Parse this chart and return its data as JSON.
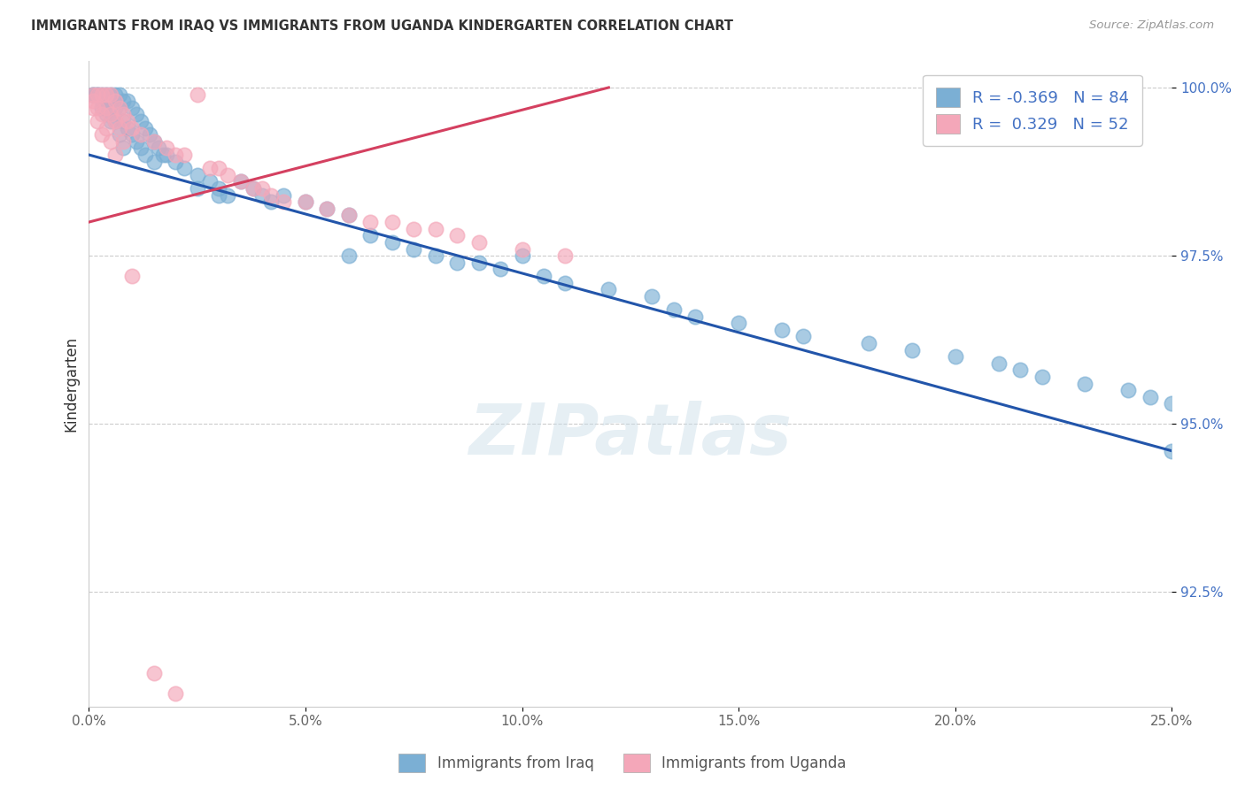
{
  "title": "IMMIGRANTS FROM IRAQ VS IMMIGRANTS FROM UGANDA KINDERGARTEN CORRELATION CHART",
  "source": "Source: ZipAtlas.com",
  "ylabel": "Kindergarten",
  "blue_R": -0.369,
  "blue_N": 84,
  "pink_R": 0.329,
  "pink_N": 52,
  "blue_color": "#7bafd4",
  "pink_color": "#f4a7b9",
  "blue_line_color": "#2255aa",
  "pink_line_color": "#d44060",
  "legend_label_blue": "Immigrants from Iraq",
  "legend_label_pink": "Immigrants from Uganda",
  "watermark": "ZIPatlas",
  "xlim": [
    0.0,
    0.25
  ],
  "ylim": [
    0.908,
    1.004
  ],
  "ytick_vals": [
    1.0,
    0.975,
    0.95,
    0.925
  ],
  "ytick_labels": [
    "100.0%",
    "97.5%",
    "95.0%",
    "92.5%"
  ],
  "xtick_vals": [
    0.0,
    0.05,
    0.1,
    0.15,
    0.2,
    0.25
  ],
  "xtick_labels": [
    "0.0%",
    "5.0%",
    "10.0%",
    "15.0%",
    "20.0%",
    "25.0%"
  ],
  "blue_trend_x": [
    0.0,
    0.25
  ],
  "blue_trend_y": [
    0.99,
    0.946
  ],
  "pink_trend_x": [
    0.0,
    0.12
  ],
  "pink_trend_y": [
    0.98,
    1.0
  ],
  "blue_points": [
    [
      0.001,
      0.999
    ],
    [
      0.001,
      0.999
    ],
    [
      0.002,
      0.999
    ],
    [
      0.002,
      0.999
    ],
    [
      0.003,
      0.999
    ],
    [
      0.003,
      0.998
    ],
    [
      0.003,
      0.997
    ],
    [
      0.004,
      0.999
    ],
    [
      0.004,
      0.998
    ],
    [
      0.004,
      0.997
    ],
    [
      0.004,
      0.996
    ],
    [
      0.005,
      0.999
    ],
    [
      0.005,
      0.998
    ],
    [
      0.005,
      0.995
    ],
    [
      0.006,
      0.999
    ],
    [
      0.006,
      0.997
    ],
    [
      0.006,
      0.995
    ],
    [
      0.007,
      0.999
    ],
    [
      0.007,
      0.997
    ],
    [
      0.007,
      0.993
    ],
    [
      0.008,
      0.998
    ],
    [
      0.008,
      0.995
    ],
    [
      0.008,
      0.991
    ],
    [
      0.009,
      0.998
    ],
    [
      0.009,
      0.994
    ],
    [
      0.01,
      0.997
    ],
    [
      0.01,
      0.993
    ],
    [
      0.011,
      0.996
    ],
    [
      0.011,
      0.992
    ],
    [
      0.012,
      0.995
    ],
    [
      0.012,
      0.991
    ],
    [
      0.013,
      0.994
    ],
    [
      0.013,
      0.99
    ],
    [
      0.014,
      0.993
    ],
    [
      0.015,
      0.992
    ],
    [
      0.015,
      0.989
    ],
    [
      0.016,
      0.991
    ],
    [
      0.017,
      0.99
    ],
    [
      0.018,
      0.99
    ],
    [
      0.02,
      0.989
    ],
    [
      0.022,
      0.988
    ],
    [
      0.025,
      0.987
    ],
    [
      0.025,
      0.985
    ],
    [
      0.028,
      0.986
    ],
    [
      0.03,
      0.985
    ],
    [
      0.03,
      0.984
    ],
    [
      0.032,
      0.984
    ],
    [
      0.035,
      0.986
    ],
    [
      0.038,
      0.985
    ],
    [
      0.04,
      0.984
    ],
    [
      0.042,
      0.983
    ],
    [
      0.045,
      0.984
    ],
    [
      0.05,
      0.983
    ],
    [
      0.055,
      0.982
    ],
    [
      0.06,
      0.981
    ],
    [
      0.06,
      0.975
    ],
    [
      0.065,
      0.978
    ],
    [
      0.07,
      0.977
    ],
    [
      0.075,
      0.976
    ],
    [
      0.08,
      0.975
    ],
    [
      0.085,
      0.974
    ],
    [
      0.09,
      0.974
    ],
    [
      0.095,
      0.973
    ],
    [
      0.1,
      0.975
    ],
    [
      0.105,
      0.972
    ],
    [
      0.11,
      0.971
    ],
    [
      0.12,
      0.97
    ],
    [
      0.13,
      0.969
    ],
    [
      0.135,
      0.967
    ],
    [
      0.14,
      0.966
    ],
    [
      0.15,
      0.965
    ],
    [
      0.16,
      0.964
    ],
    [
      0.165,
      0.963
    ],
    [
      0.18,
      0.962
    ],
    [
      0.19,
      0.961
    ],
    [
      0.2,
      0.96
    ],
    [
      0.21,
      0.959
    ],
    [
      0.215,
      0.958
    ],
    [
      0.22,
      0.957
    ],
    [
      0.23,
      0.956
    ],
    [
      0.24,
      0.955
    ],
    [
      0.245,
      0.954
    ],
    [
      0.25,
      0.953
    ],
    [
      0.25,
      0.946
    ]
  ],
  "pink_points": [
    [
      0.001,
      0.999
    ],
    [
      0.001,
      0.998
    ],
    [
      0.001,
      0.997
    ],
    [
      0.002,
      0.999
    ],
    [
      0.002,
      0.997
    ],
    [
      0.002,
      0.995
    ],
    [
      0.003,
      0.999
    ],
    [
      0.003,
      0.996
    ],
    [
      0.003,
      0.993
    ],
    [
      0.004,
      0.999
    ],
    [
      0.004,
      0.997
    ],
    [
      0.004,
      0.994
    ],
    [
      0.005,
      0.999
    ],
    [
      0.005,
      0.996
    ],
    [
      0.005,
      0.992
    ],
    [
      0.006,
      0.998
    ],
    [
      0.006,
      0.995
    ],
    [
      0.006,
      0.99
    ],
    [
      0.007,
      0.997
    ],
    [
      0.007,
      0.994
    ],
    [
      0.008,
      0.996
    ],
    [
      0.008,
      0.992
    ],
    [
      0.009,
      0.995
    ],
    [
      0.01,
      0.994
    ],
    [
      0.012,
      0.993
    ],
    [
      0.015,
      0.992
    ],
    [
      0.018,
      0.991
    ],
    [
      0.02,
      0.99
    ],
    [
      0.022,
      0.99
    ],
    [
      0.025,
      0.999
    ],
    [
      0.028,
      0.988
    ],
    [
      0.03,
      0.988
    ],
    [
      0.032,
      0.987
    ],
    [
      0.035,
      0.986
    ],
    [
      0.038,
      0.985
    ],
    [
      0.04,
      0.985
    ],
    [
      0.042,
      0.984
    ],
    [
      0.045,
      0.983
    ],
    [
      0.05,
      0.983
    ],
    [
      0.055,
      0.982
    ],
    [
      0.06,
      0.981
    ],
    [
      0.065,
      0.98
    ],
    [
      0.07,
      0.98
    ],
    [
      0.075,
      0.979
    ],
    [
      0.08,
      0.979
    ],
    [
      0.085,
      0.978
    ],
    [
      0.09,
      0.977
    ],
    [
      0.1,
      0.976
    ],
    [
      0.11,
      0.975
    ],
    [
      0.01,
      0.972
    ],
    [
      0.015,
      0.913
    ],
    [
      0.02,
      0.91
    ]
  ]
}
